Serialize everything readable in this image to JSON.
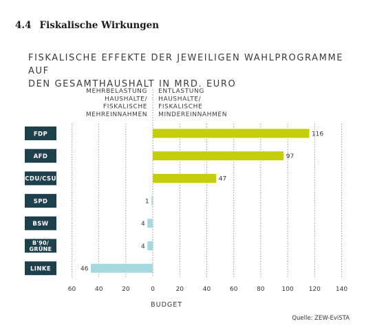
{
  "section": {
    "number": "4.4",
    "title": "Fiskalische Wirkungen"
  },
  "chart_data": {
    "type": "bar",
    "orientation": "horizontal",
    "title_lines": [
      "FISKALISCHE EFFEKTE DER JEWEILIGEN WAHLPROGRAMME AUF",
      "DEN GESAMTHAUSHALT IN MRD. EURO"
    ],
    "left_header": [
      "MEHRBELASTUNG",
      "HAUSHALTE/",
      "FISKALISCHE",
      "MEHREINNAHMEN"
    ],
    "right_header": [
      "ENTLASTUNG",
      "HAUSHALTE/",
      "FISKALISCHE",
      "MINDEREINNAHMEN"
    ],
    "categories": [
      [
        "FDP"
      ],
      [
        "AFD"
      ],
      [
        "CDU/CSU"
      ],
      [
        "SPD"
      ],
      [
        "BSW"
      ],
      [
        "B'90/",
        "GRÜNE"
      ],
      [
        "LINKE"
      ]
    ],
    "values": [
      116,
      97,
      47,
      -1,
      -4,
      -4,
      -46
    ],
    "value_labels": [
      "116",
      "97",
      "47",
      "1",
      "4",
      "4",
      "46"
    ],
    "xlim": [
      -60,
      140
    ],
    "x_ticks": [
      -60,
      -40,
      -20,
      0,
      20,
      40,
      60,
      80,
      100,
      120,
      140
    ],
    "x_tick_labels": [
      "60",
      "40",
      "20",
      "0",
      "20",
      "40",
      "60",
      "80",
      "100",
      "120",
      "140"
    ],
    "xlabel": "BUDGET",
    "grid": true,
    "source": "Quelle: ZEW-EviSTA",
    "colors": {
      "positive": "#c3cd0a",
      "negative": "#a6d8e0",
      "label_box": "#1e3f4c",
      "grid": "#7a7a7a",
      "text": "#333333"
    }
  }
}
